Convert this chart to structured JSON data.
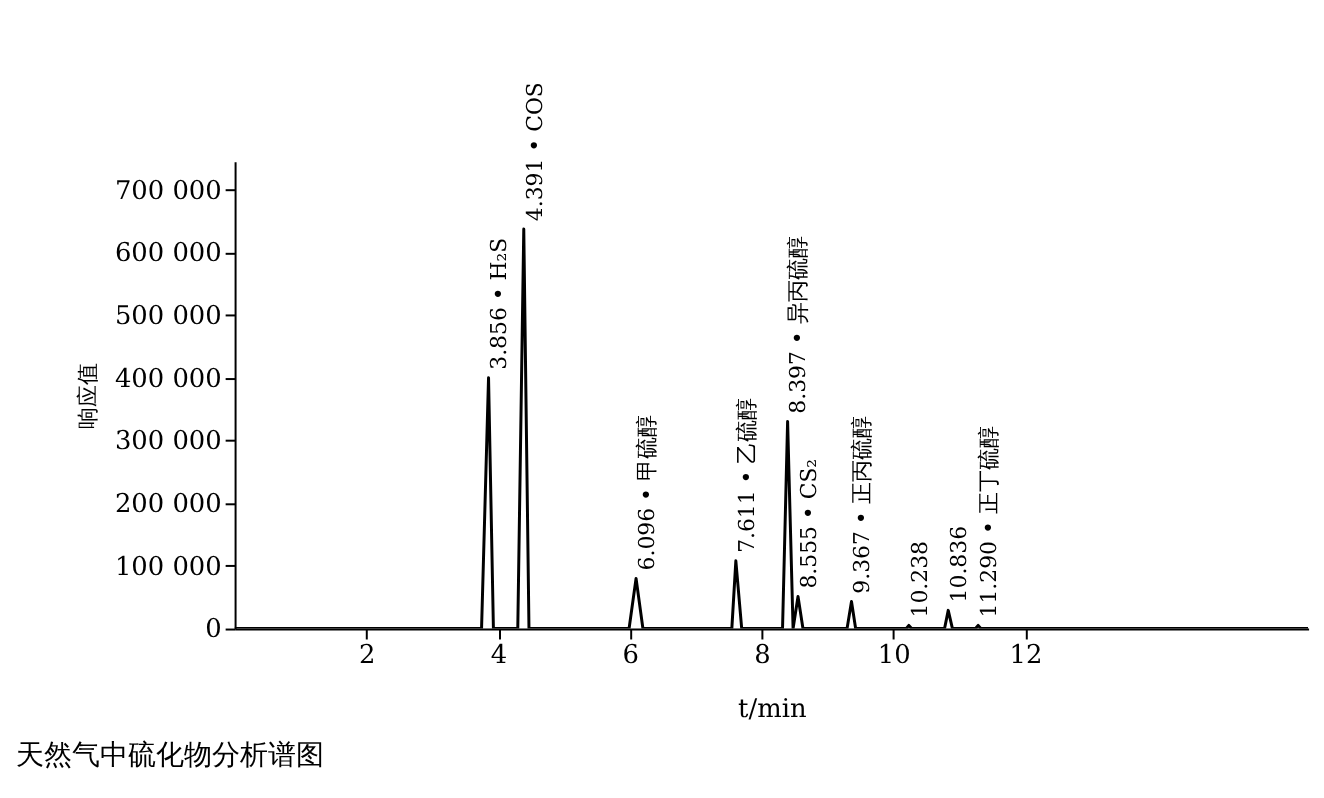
{
  "chart_data": {
    "type": "line",
    "title": "天然气中硫化物分析谱图",
    "xlabel": "t/min",
    "ylabel": "响应值",
    "xlim": [
      0,
      16.3
    ],
    "xticks": [
      2,
      4,
      6,
      8,
      10,
      12
    ],
    "ylim": [
      0,
      745000
    ],
    "yticks": [
      0,
      {
        "value": 100000,
        "label": "100 000"
      },
      {
        "value": 200000,
        "label": "200 000"
      },
      {
        "value": 300000,
        "label": "300 000"
      },
      {
        "value": 400000,
        "label": "400 000"
      },
      {
        "value": 500000,
        "label": "500 000"
      },
      {
        "value": 600000,
        "label": "600 000"
      },
      {
        "value": 700000,
        "label": "700 000"
      }
    ],
    "grid": false,
    "marker": "none",
    "line_style": "solid",
    "series": [
      {
        "color": "#000000",
        "x": [
          0,
          3.75,
          3.856,
          3.93,
          4.3,
          4.391,
          4.47,
          5.99,
          6.096,
          6.2,
          7.55,
          7.611,
          7.7,
          8.32,
          8.397,
          8.48,
          8.555,
          8.63,
          9.3,
          9.367,
          9.43,
          10.2,
          10.238,
          10.28,
          10.78,
          10.836,
          10.9,
          11.25,
          11.29,
          11.33,
          16.3
        ],
        "values": [
          0,
          0,
          400000,
          0,
          0,
          637000,
          0,
          0,
          80000,
          0,
          0,
          108000,
          0,
          0,
          330000,
          0,
          51000,
          0,
          0,
          43000,
          0,
          0,
          5000,
          0,
          0,
          29000,
          0,
          0,
          5000,
          0,
          0
        ]
      }
    ],
    "annotations": [
      {
        "text": "3.856 • H₂S",
        "x": 3.856,
        "y": 400000
      },
      {
        "text": "4.391 • COS",
        "x": 4.391,
        "y": 637000
      },
      {
        "text": "6.096 • 甲硫醇",
        "x": 6.096,
        "y": 80000
      },
      {
        "text": "7.611 • 乙硫醇",
        "x": 7.611,
        "y": 108000
      },
      {
        "text": "8.397 • 异丙硫醇",
        "x": 8.397,
        "y": 330000
      },
      {
        "text": "8.555 • CS₂",
        "x": 8.555,
        "y": 51000
      },
      {
        "text": "9.367 • 正丙硫醇",
        "x": 9.367,
        "y": 43000
      },
      {
        "text": "10.238",
        "x": 10.238,
        "y": 5000
      },
      {
        "text": "10.836",
        "x": 10.836,
        "y": 29000
      },
      {
        "text": "11.290 • 正丁硫醇",
        "x": 11.29,
        "y": 5000
      }
    ]
  }
}
